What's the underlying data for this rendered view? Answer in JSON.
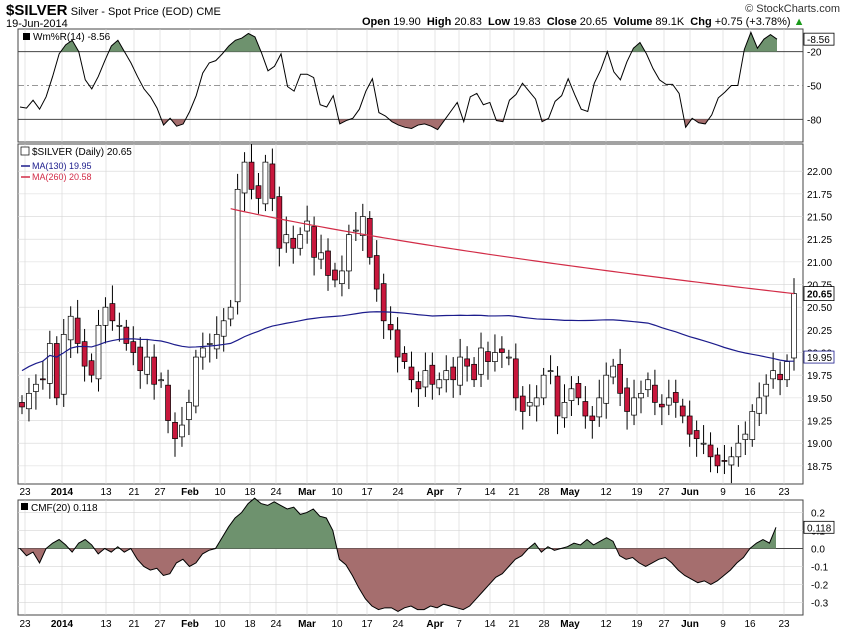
{
  "header": {
    "symbol": "$SILVER",
    "description": "Silver - Spot Price (EOD)",
    "exchange": "CME",
    "date": "19-Jun-2014",
    "brand": "© StockCharts.com",
    "open_label": "Open",
    "open": "19.90",
    "high_label": "High",
    "high": "20.83",
    "low_label": "Low",
    "low": "19.83",
    "close_label": "Close",
    "close": "20.65",
    "volume_label": "Volume",
    "volume": "89.1K",
    "chg_label": "Chg",
    "chg": "+0.75 (+3.78%)",
    "up_arrow": "▲"
  },
  "colors": {
    "up": "#ffffff",
    "down": "#c8173c",
    "ma130": "#1c1c8c",
    "ma260": "#d22c47",
    "pos_fill": "#6e926e",
    "neg_fill": "#a56e6e",
    "grid": "#d6d6d6"
  },
  "chart_data": [
    {
      "panel": "williams_r",
      "type": "line",
      "legend": "Wm%R(14) -8.56",
      "last_label": "-8.56",
      "yticks": [
        "-20",
        "-50",
        "-80"
      ],
      "ylim": [
        -100,
        0
      ],
      "reference_lines": [
        -20,
        -50,
        -80
      ],
      "values": [
        -69,
        -70,
        -63,
        -71,
        -60,
        -42,
        -22,
        -14,
        -10,
        -20,
        -45,
        -53,
        -42,
        -28,
        -15,
        -10,
        -20,
        -30,
        -42,
        -53,
        -60,
        -70,
        -85,
        -79,
        -86,
        -84,
        -73,
        -59,
        -39,
        -30,
        -28,
        -22,
        -15,
        -10,
        -8,
        -4,
        -7,
        -21,
        -37,
        -33,
        -22,
        -51,
        -55,
        -40,
        -40,
        -43,
        -67,
        -69,
        -59,
        -84,
        -81,
        -79,
        -71,
        -55,
        -44,
        -74,
        -77,
        -82,
        -85,
        -87,
        -88,
        -85,
        -84,
        -86,
        -89,
        -81,
        -73,
        -65,
        -82,
        -60,
        -57,
        -67,
        -65,
        -81,
        -82,
        -63,
        -58,
        -48,
        -55,
        -62,
        -82,
        -79,
        -64,
        -59,
        -44,
        -58,
        -71,
        -73,
        -48,
        -36,
        -20,
        -38,
        -45,
        -29,
        -17,
        -12,
        -22,
        -35,
        -45,
        -49,
        -49,
        -57,
        -87,
        -79,
        -83,
        -84,
        -76,
        -61,
        -56,
        -50,
        -50,
        -18,
        -3,
        -17,
        -9,
        -5,
        -9
      ]
    },
    {
      "panel": "price",
      "type": "candlestick",
      "legend": "$SILVER (Daily) 20.65",
      "ma_legends": [
        "MA(130) 19.95",
        "MA(260) 20.58"
      ],
      "last_price_label": "20.65",
      "ma130_label": "19.95",
      "ylim": [
        18.55,
        22.3
      ],
      "yticks": [
        "18.75",
        "19.00",
        "19.25",
        "19.50",
        "19.75",
        "20.00",
        "20.25",
        "20.50",
        "20.75",
        "21.00",
        "21.25",
        "21.50",
        "21.75",
        "22.00"
      ],
      "xticks": [
        "23",
        "2014",
        "13",
        "21",
        "27",
        "Feb",
        "10",
        "18",
        "24",
        "Mar",
        "10",
        "17",
        "24",
        "Apr",
        "7",
        "14",
        "21",
        "28",
        "May",
        "12",
        "19",
        "27",
        "Jun",
        "9",
        "16",
        "23"
      ],
      "closes": [
        19.4,
        19.55,
        19.65,
        19.7,
        20.1,
        19.5,
        20.2,
        20.4,
        20.1,
        19.85,
        19.75,
        20.3,
        20.5,
        20.35,
        20.3,
        20.1,
        20.0,
        19.8,
        19.95,
        19.65,
        19.7,
        19.25,
        19.05,
        19.2,
        19.45,
        19.95,
        20.05,
        20.1,
        20.2,
        20.35,
        20.5,
        21.8,
        22.1,
        21.8,
        21.7,
        22.1,
        21.7,
        21.15,
        21.3,
        21.15,
        21.3,
        21.45,
        21.05,
        21.1,
        20.85,
        20.8,
        20.9,
        21.3,
        21.35,
        21.5,
        21.05,
        20.7,
        20.35,
        20.25,
        19.95,
        19.9,
        19.7,
        19.6,
        19.8,
        19.65,
        19.7,
        19.8,
        19.7,
        19.95,
        19.85,
        19.7,
        20.05,
        19.9,
        20.0,
        20.0,
        19.95,
        19.5,
        19.35,
        19.45,
        19.5,
        19.75,
        19.8,
        19.3,
        19.45,
        19.6,
        19.5,
        19.3,
        19.25,
        19.5,
        19.75,
        19.85,
        19.55,
        19.35,
        19.5,
        19.55,
        19.7,
        19.45,
        19.4,
        19.5,
        19.45,
        19.3,
        19.1,
        19.05,
        19.0,
        18.85,
        18.75,
        18.8,
        18.85,
        19.0,
        19.1,
        19.35,
        19.5,
        19.65,
        19.8,
        19.7,
        19.9,
        20.65
      ]
    },
    {
      "panel": "cmf",
      "type": "area",
      "legend": "CMF(20) 0.118",
      "last_label": "0.118",
      "yticks": [
        "0.2",
        "0.1",
        "0.0",
        "-0.1",
        "-0.2",
        "-0.3"
      ],
      "ylim": [
        -0.37,
        0.27
      ],
      "values": [
        0.0,
        -0.04,
        -0.02,
        -0.08,
        0.0,
        0.03,
        0.05,
        0.02,
        -0.02,
        0.03,
        0.05,
        0.02,
        -0.03,
        0.0,
        -0.02,
        0.01,
        -0.02,
        0.0,
        -0.06,
        -0.1,
        -0.12,
        -0.11,
        -0.15,
        -0.14,
        -0.08,
        -0.06,
        -0.1,
        -0.08,
        -0.03,
        -0.01,
        0.0,
        0.06,
        0.12,
        0.17,
        0.2,
        0.25,
        0.28,
        0.25,
        0.24,
        0.26,
        0.24,
        0.22,
        0.23,
        0.19,
        0.2,
        0.22,
        0.18,
        0.17,
        0.1,
        -0.06,
        -0.09,
        -0.15,
        -0.22,
        -0.28,
        -0.32,
        -0.34,
        -0.33,
        -0.33,
        -0.35,
        -0.33,
        -0.32,
        -0.34,
        -0.34,
        -0.32,
        -0.33,
        -0.31,
        -0.32,
        -0.33,
        -0.34,
        -0.32,
        -0.28,
        -0.24,
        -0.2,
        -0.16,
        -0.14,
        -0.1,
        -0.06,
        -0.04,
        0.0,
        0.03,
        -0.02,
        0.01,
        -0.01,
        0.0,
        0.01,
        0.03,
        0.02,
        0.05,
        0.02,
        0.04,
        0.06,
        0.04,
        -0.04,
        -0.06,
        -0.05,
        -0.08,
        -0.1,
        -0.08,
        -0.06,
        -0.05,
        -0.08,
        -0.12,
        -0.15,
        -0.17,
        -0.19,
        -0.18,
        -0.2,
        -0.18,
        -0.15,
        -0.12,
        -0.08,
        -0.05,
        0.0,
        0.03,
        0.05,
        0.03,
        0.118
      ]
    }
  ]
}
